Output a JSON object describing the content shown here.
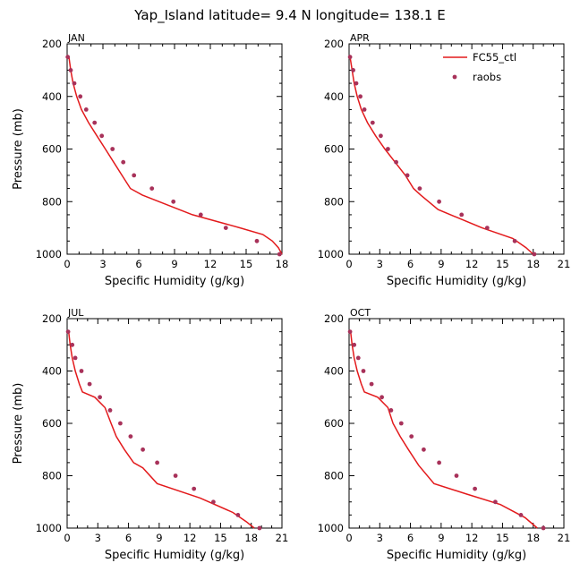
{
  "title": "Yap_Island  latitude= 9.4 N longitude= 138.1 E",
  "colors": {
    "model": "#e31a1c",
    "obs": "#a8325a",
    "axis": "#000000"
  },
  "legend": {
    "model_label": "FC55_ctl",
    "obs_label": "raobs"
  },
  "chart_data": [
    {
      "type": "line",
      "panel": "JAN",
      "xlabel": "Specific Humidity (g/kg)",
      "ylabel": "Pressure (mb)",
      "xlim": [
        0,
        18
      ],
      "ylim": [
        1000,
        200
      ],
      "xticks": [
        0,
        3,
        6,
        9,
        12,
        15,
        18
      ],
      "yticks": [
        200,
        400,
        600,
        800,
        1000
      ],
      "series": [
        {
          "name": "FC55_ctl",
          "x": [
            0.15,
            0.3,
            0.5,
            0.8,
            1.2,
            1.8,
            2.5,
            3.2,
            3.9,
            4.6,
            5.3,
            6.3,
            10.5,
            14.5,
            16.4,
            17.2,
            17.7,
            18.0
          ],
          "y": [
            250,
            300,
            350,
            400,
            450,
            500,
            550,
            600,
            650,
            700,
            750,
            775,
            850,
            900,
            925,
            950,
            975,
            1000
          ]
        },
        {
          "name": "raobs",
          "x": [
            0.05,
            0.3,
            0.6,
            1.1,
            1.6,
            2.3,
            2.9,
            3.8,
            4.7,
            5.6,
            7.1,
            8.9,
            11.2,
            13.3,
            15.9,
            17.8
          ],
          "y": [
            250,
            300,
            350,
            400,
            450,
            500,
            550,
            600,
            650,
            700,
            750,
            800,
            850,
            900,
            950,
            1000
          ]
        }
      ]
    },
    {
      "type": "line",
      "panel": "APR",
      "xlabel": "Specific Humidity (g/kg)",
      "ylabel": "Pressure (mb)",
      "xlim": [
        0,
        21
      ],
      "ylim": [
        1000,
        200
      ],
      "xticks": [
        0,
        3,
        6,
        9,
        12,
        15,
        18,
        21
      ],
      "yticks": [
        200,
        400,
        600,
        800,
        1000
      ],
      "series": [
        {
          "name": "FC55_ctl",
          "x": [
            0.1,
            0.3,
            0.5,
            0.8,
            1.2,
            1.8,
            2.6,
            3.5,
            4.5,
            5.5,
            6.3,
            7.0,
            8.7,
            13.0,
            16.0,
            17.3,
            18.0
          ],
          "y": [
            250,
            300,
            350,
            400,
            450,
            500,
            550,
            600,
            650,
            700,
            750,
            775,
            830,
            900,
            940,
            975,
            1000
          ]
        },
        {
          "name": "raobs",
          "x": [
            0.1,
            0.4,
            0.7,
            1.1,
            1.5,
            2.3,
            3.1,
            3.8,
            4.6,
            5.7,
            6.9,
            8.8,
            11.0,
            13.5,
            16.2,
            18.1
          ],
          "y": [
            250,
            300,
            350,
            400,
            450,
            500,
            550,
            600,
            650,
            700,
            750,
            800,
            850,
            900,
            950,
            1000
          ]
        }
      ]
    },
    {
      "type": "line",
      "panel": "JUL",
      "xlabel": "Specific Humidity (g/kg)",
      "ylabel": "Pressure (mb)",
      "xlim": [
        0,
        21
      ],
      "ylim": [
        1000,
        200
      ],
      "xticks": [
        0,
        3,
        6,
        9,
        12,
        15,
        18,
        21
      ],
      "yticks": [
        200,
        400,
        600,
        800,
        1000
      ],
      "series": [
        {
          "name": "FC55_ctl",
          "x": [
            0.15,
            0.3,
            0.5,
            0.8,
            1.2,
            1.5,
            2.7,
            3.7,
            4.3,
            4.8,
            5.6,
            6.5,
            7.4,
            8.8,
            13.0,
            16.2,
            17.5,
            18.3
          ],
          "y": [
            250,
            300,
            350,
            400,
            450,
            480,
            500,
            540,
            600,
            650,
            700,
            750,
            770,
            830,
            885,
            940,
            975,
            1000
          ]
        },
        {
          "name": "raobs",
          "x": [
            0.1,
            0.5,
            0.8,
            1.4,
            2.2,
            3.2,
            4.2,
            5.2,
            6.2,
            7.4,
            8.8,
            10.6,
            12.4,
            14.3,
            16.7,
            18.8
          ],
          "y": [
            250,
            300,
            350,
            400,
            450,
            500,
            550,
            600,
            650,
            700,
            750,
            800,
            850,
            900,
            950,
            1000
          ]
        }
      ]
    },
    {
      "type": "line",
      "panel": "OCT",
      "xlabel": "Specific Humidity (g/kg)",
      "ylabel": "Pressure (mb)",
      "xlim": [
        0,
        21
      ],
      "ylim": [
        1000,
        200
      ],
      "xticks": [
        0,
        3,
        6,
        9,
        12,
        15,
        18,
        21
      ],
      "yticks": [
        200,
        400,
        600,
        800,
        1000
      ],
      "series": [
        {
          "name": "FC55_ctl",
          "x": [
            0.15,
            0.3,
            0.5,
            0.8,
            1.2,
            1.5,
            2.8,
            3.8,
            4.3,
            5.0,
            5.8,
            6.8,
            8.3,
            11.5,
            14.8,
            17.2,
            18.4
          ],
          "y": [
            250,
            300,
            350,
            400,
            450,
            480,
            500,
            540,
            600,
            650,
            700,
            760,
            830,
            870,
            910,
            960,
            1000
          ]
        },
        {
          "name": "raobs",
          "x": [
            0.1,
            0.5,
            0.9,
            1.4,
            2.2,
            3.2,
            4.1,
            5.1,
            6.1,
            7.3,
            8.8,
            10.5,
            12.3,
            14.3,
            16.8,
            19.0
          ],
          "y": [
            250,
            300,
            350,
            400,
            450,
            500,
            550,
            600,
            650,
            700,
            750,
            800,
            850,
            900,
            950,
            1000
          ]
        }
      ]
    }
  ]
}
